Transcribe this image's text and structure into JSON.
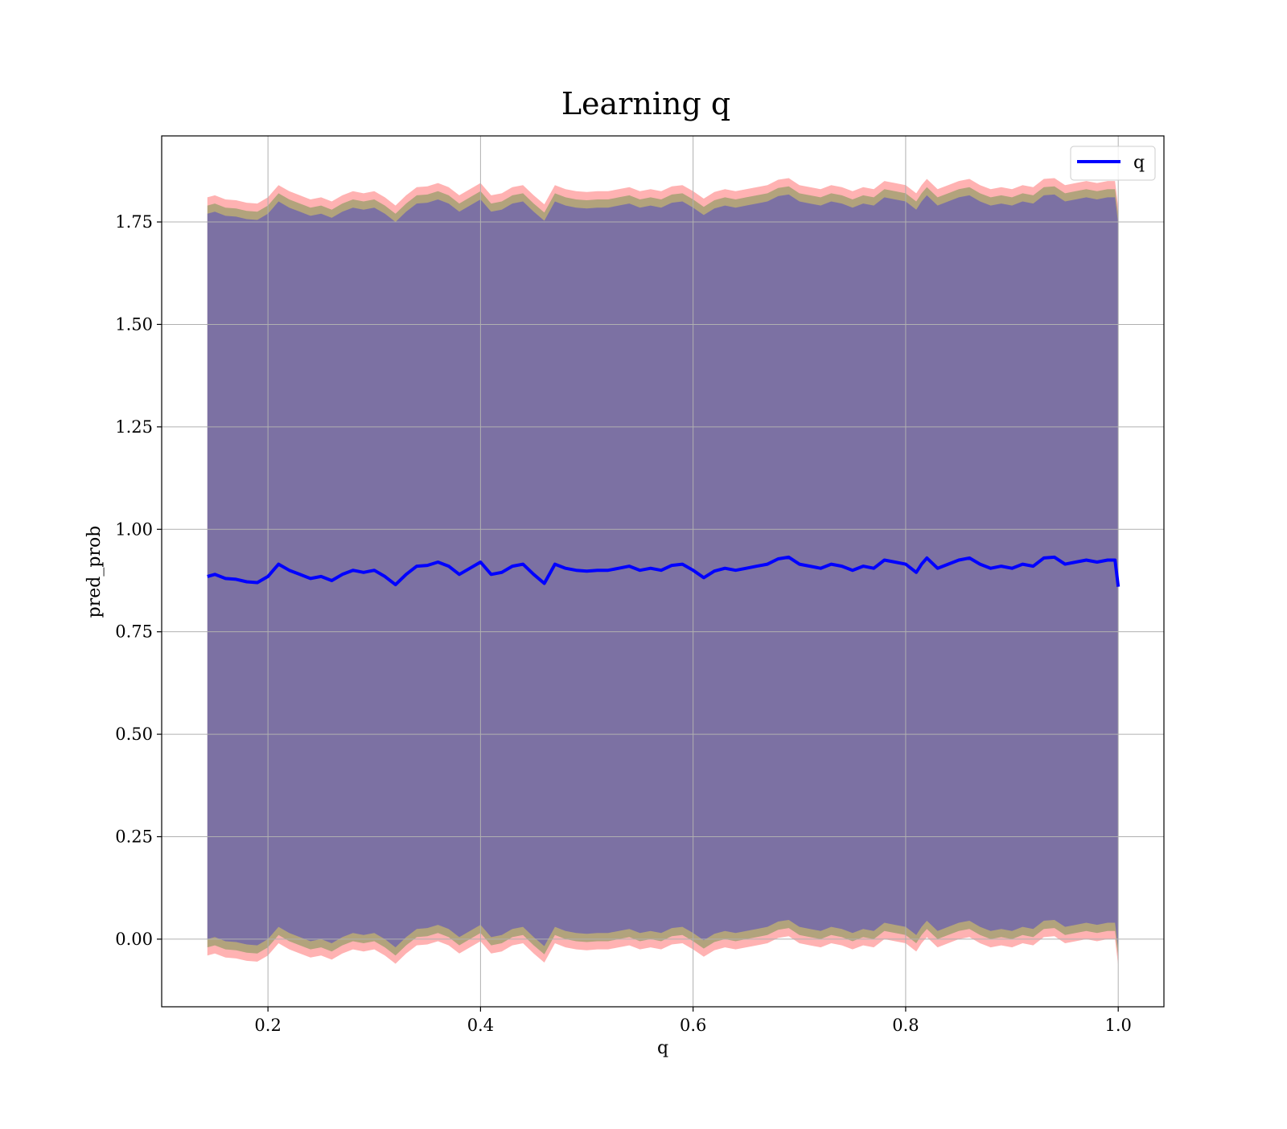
{
  "chart_data": {
    "type": "line",
    "title": "Learning q",
    "xlabel": "q",
    "ylabel": "pred_prob",
    "xlim": [
      0.1,
      1.043
    ],
    "ylim": [
      -0.165,
      1.96
    ],
    "grid": true,
    "legend": {
      "placement": "top-right",
      "entries": [
        {
          "label": "q",
          "color": "#0000ff"
        }
      ]
    },
    "x_ticks": [
      {
        "value": 0.2,
        "label": "0.2"
      },
      {
        "value": 0.4,
        "label": "0.4"
      },
      {
        "value": 0.6,
        "label": "0.6"
      },
      {
        "value": 0.8,
        "label": "0.8"
      },
      {
        "value": 1.0,
        "label": "1.0"
      }
    ],
    "y_ticks": [
      {
        "value": 0.0,
        "label": "0.00"
      },
      {
        "value": 0.25,
        "label": "0.25"
      },
      {
        "value": 0.5,
        "label": "0.50"
      },
      {
        "value": 0.75,
        "label": "0.75"
      },
      {
        "value": 1.0,
        "label": "1.00"
      },
      {
        "value": 1.25,
        "label": "1.25"
      },
      {
        "value": 1.5,
        "label": "1.50"
      },
      {
        "value": 1.75,
        "label": "1.75"
      }
    ],
    "series": [
      {
        "name": "q",
        "color": "#0000ff",
        "x": [
          0.143,
          0.15,
          0.16,
          0.17,
          0.18,
          0.19,
          0.2,
          0.205,
          0.21,
          0.22,
          0.23,
          0.24,
          0.25,
          0.26,
          0.27,
          0.28,
          0.29,
          0.3,
          0.31,
          0.32,
          0.33,
          0.34,
          0.35,
          0.36,
          0.37,
          0.38,
          0.39,
          0.4,
          0.41,
          0.42,
          0.43,
          0.44,
          0.45,
          0.46,
          0.47,
          0.48,
          0.49,
          0.5,
          0.51,
          0.52,
          0.53,
          0.54,
          0.55,
          0.56,
          0.57,
          0.58,
          0.59,
          0.6,
          0.61,
          0.62,
          0.63,
          0.64,
          0.65,
          0.66,
          0.67,
          0.68,
          0.69,
          0.7,
          0.71,
          0.72,
          0.73,
          0.74,
          0.75,
          0.76,
          0.77,
          0.78,
          0.79,
          0.8,
          0.81,
          0.815,
          0.82,
          0.83,
          0.84,
          0.85,
          0.86,
          0.87,
          0.88,
          0.89,
          0.9,
          0.91,
          0.92,
          0.93,
          0.94,
          0.95,
          0.96,
          0.97,
          0.98,
          0.99,
          0.997,
          1.0
        ],
        "values": [
          0.885,
          0.89,
          0.88,
          0.878,
          0.872,
          0.87,
          0.885,
          0.9,
          0.915,
          0.9,
          0.89,
          0.88,
          0.885,
          0.875,
          0.89,
          0.9,
          0.895,
          0.9,
          0.885,
          0.865,
          0.89,
          0.91,
          0.912,
          0.92,
          0.91,
          0.89,
          0.905,
          0.92,
          0.89,
          0.895,
          0.91,
          0.915,
          0.89,
          0.868,
          0.915,
          0.905,
          0.9,
          0.898,
          0.9,
          0.9,
          0.905,
          0.91,
          0.9,
          0.905,
          0.9,
          0.912,
          0.915,
          0.9,
          0.882,
          0.898,
          0.905,
          0.9,
          0.905,
          0.91,
          0.915,
          0.928,
          0.932,
          0.915,
          0.91,
          0.905,
          0.915,
          0.91,
          0.9,
          0.91,
          0.905,
          0.925,
          0.92,
          0.915,
          0.895,
          0.915,
          0.93,
          0.905,
          0.915,
          0.925,
          0.93,
          0.915,
          0.905,
          0.91,
          0.905,
          0.915,
          0.91,
          0.93,
          0.932,
          0.915,
          0.92,
          0.925,
          0.92,
          0.925,
          0.925,
          0.86
        ]
      }
    ],
    "bands": [
      {
        "color": "#ff0000",
        "opacity": 0.3,
        "half_width": 0.925
      },
      {
        "color": "#008000",
        "opacity": 0.3,
        "half_width": 0.905
      },
      {
        "color": "#0000ff",
        "opacity": 0.3,
        "half_width": 0.885
      }
    ]
  }
}
